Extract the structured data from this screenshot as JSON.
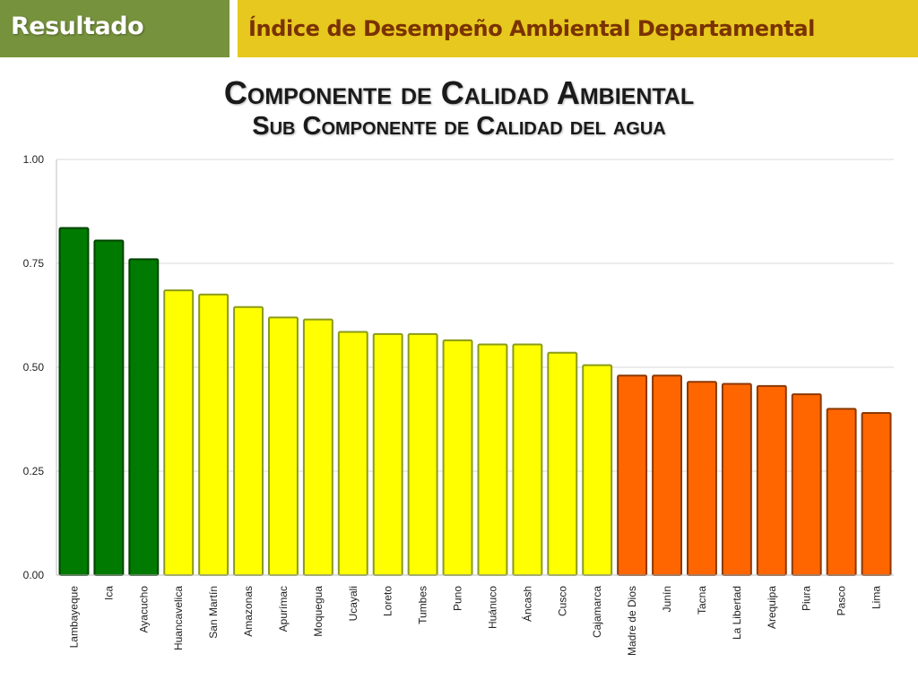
{
  "header": {
    "section_label": "Resultado",
    "banner_title": "Índice de Desempeño Ambiental Departamental"
  },
  "colors": {
    "section_bg": "#76923c",
    "banner_bg": "#e6c81e",
    "banner_text": "#7a3200",
    "green": "#007a00",
    "yellow": "#ffff00",
    "orange": "#ff6600"
  },
  "chart_data": {
    "type": "bar",
    "title": "Componente de Calidad Ambiental",
    "subtitle": "Sub Componente de Calidad del agua",
    "xlabel": "",
    "ylabel": "",
    "ylim": [
      0,
      1
    ],
    "yticks": [
      "0.00",
      "0.25",
      "0.50",
      "0.75",
      "1.00"
    ],
    "grid": true,
    "categories": [
      "Lambayeque",
      "Ica",
      "Ayacucho",
      "Huancavelica",
      "San Martín",
      "Amazonas",
      "Apurímac",
      "Moquegua",
      "Ucayali",
      "Loreto",
      "Tumbes",
      "Puno",
      "Huánuco",
      "Áncash",
      "Cusco",
      "Cajamarca",
      "Madre de Dios",
      "Junín",
      "Tacna",
      "La Libertad",
      "Arequipa",
      "Piura",
      "Pasco",
      "Lima"
    ],
    "values": [
      0.835,
      0.805,
      0.76,
      0.685,
      0.675,
      0.645,
      0.62,
      0.615,
      0.585,
      0.58,
      0.58,
      0.565,
      0.555,
      0.555,
      0.535,
      0.505,
      0.48,
      0.48,
      0.465,
      0.46,
      0.455,
      0.435,
      0.4,
      0.39
    ],
    "bar_colors": [
      "#007a00",
      "#007a00",
      "#007a00",
      "#ffff00",
      "#ffff00",
      "#ffff00",
      "#ffff00",
      "#ffff00",
      "#ffff00",
      "#ffff00",
      "#ffff00",
      "#ffff00",
      "#ffff00",
      "#ffff00",
      "#ffff00",
      "#ffff00",
      "#ff6600",
      "#ff6600",
      "#ff6600",
      "#ff6600",
      "#ff6600",
      "#ff6600",
      "#ff6600",
      "#ff6600"
    ]
  }
}
